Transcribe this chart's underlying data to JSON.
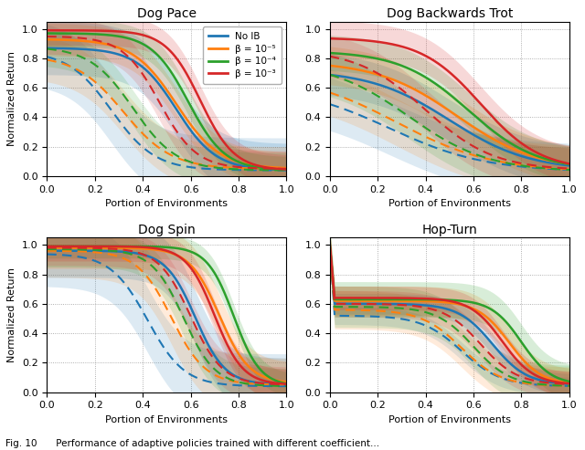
{
  "titles": [
    "Dog Pace",
    "Dog Backwards Trot",
    "Dog Spin",
    "Hop-Turn"
  ],
  "colors": {
    "blue": "#1f77b4",
    "orange": "#ff7f0e",
    "green": "#2ca02c",
    "red": "#d62728"
  },
  "legend_labels": [
    "No IB",
    "β = 10⁻⁵",
    "β = 10⁻⁴",
    "β = 10⁻³"
  ],
  "xlabel": "Portion of Environments",
  "ylabel": "Normalized Return",
  "figsize": [
    6.4,
    4.93
  ],
  "dpi": 100,
  "caption": "Fig. 10  Performance of adaptive policies trained with different coefficient..."
}
